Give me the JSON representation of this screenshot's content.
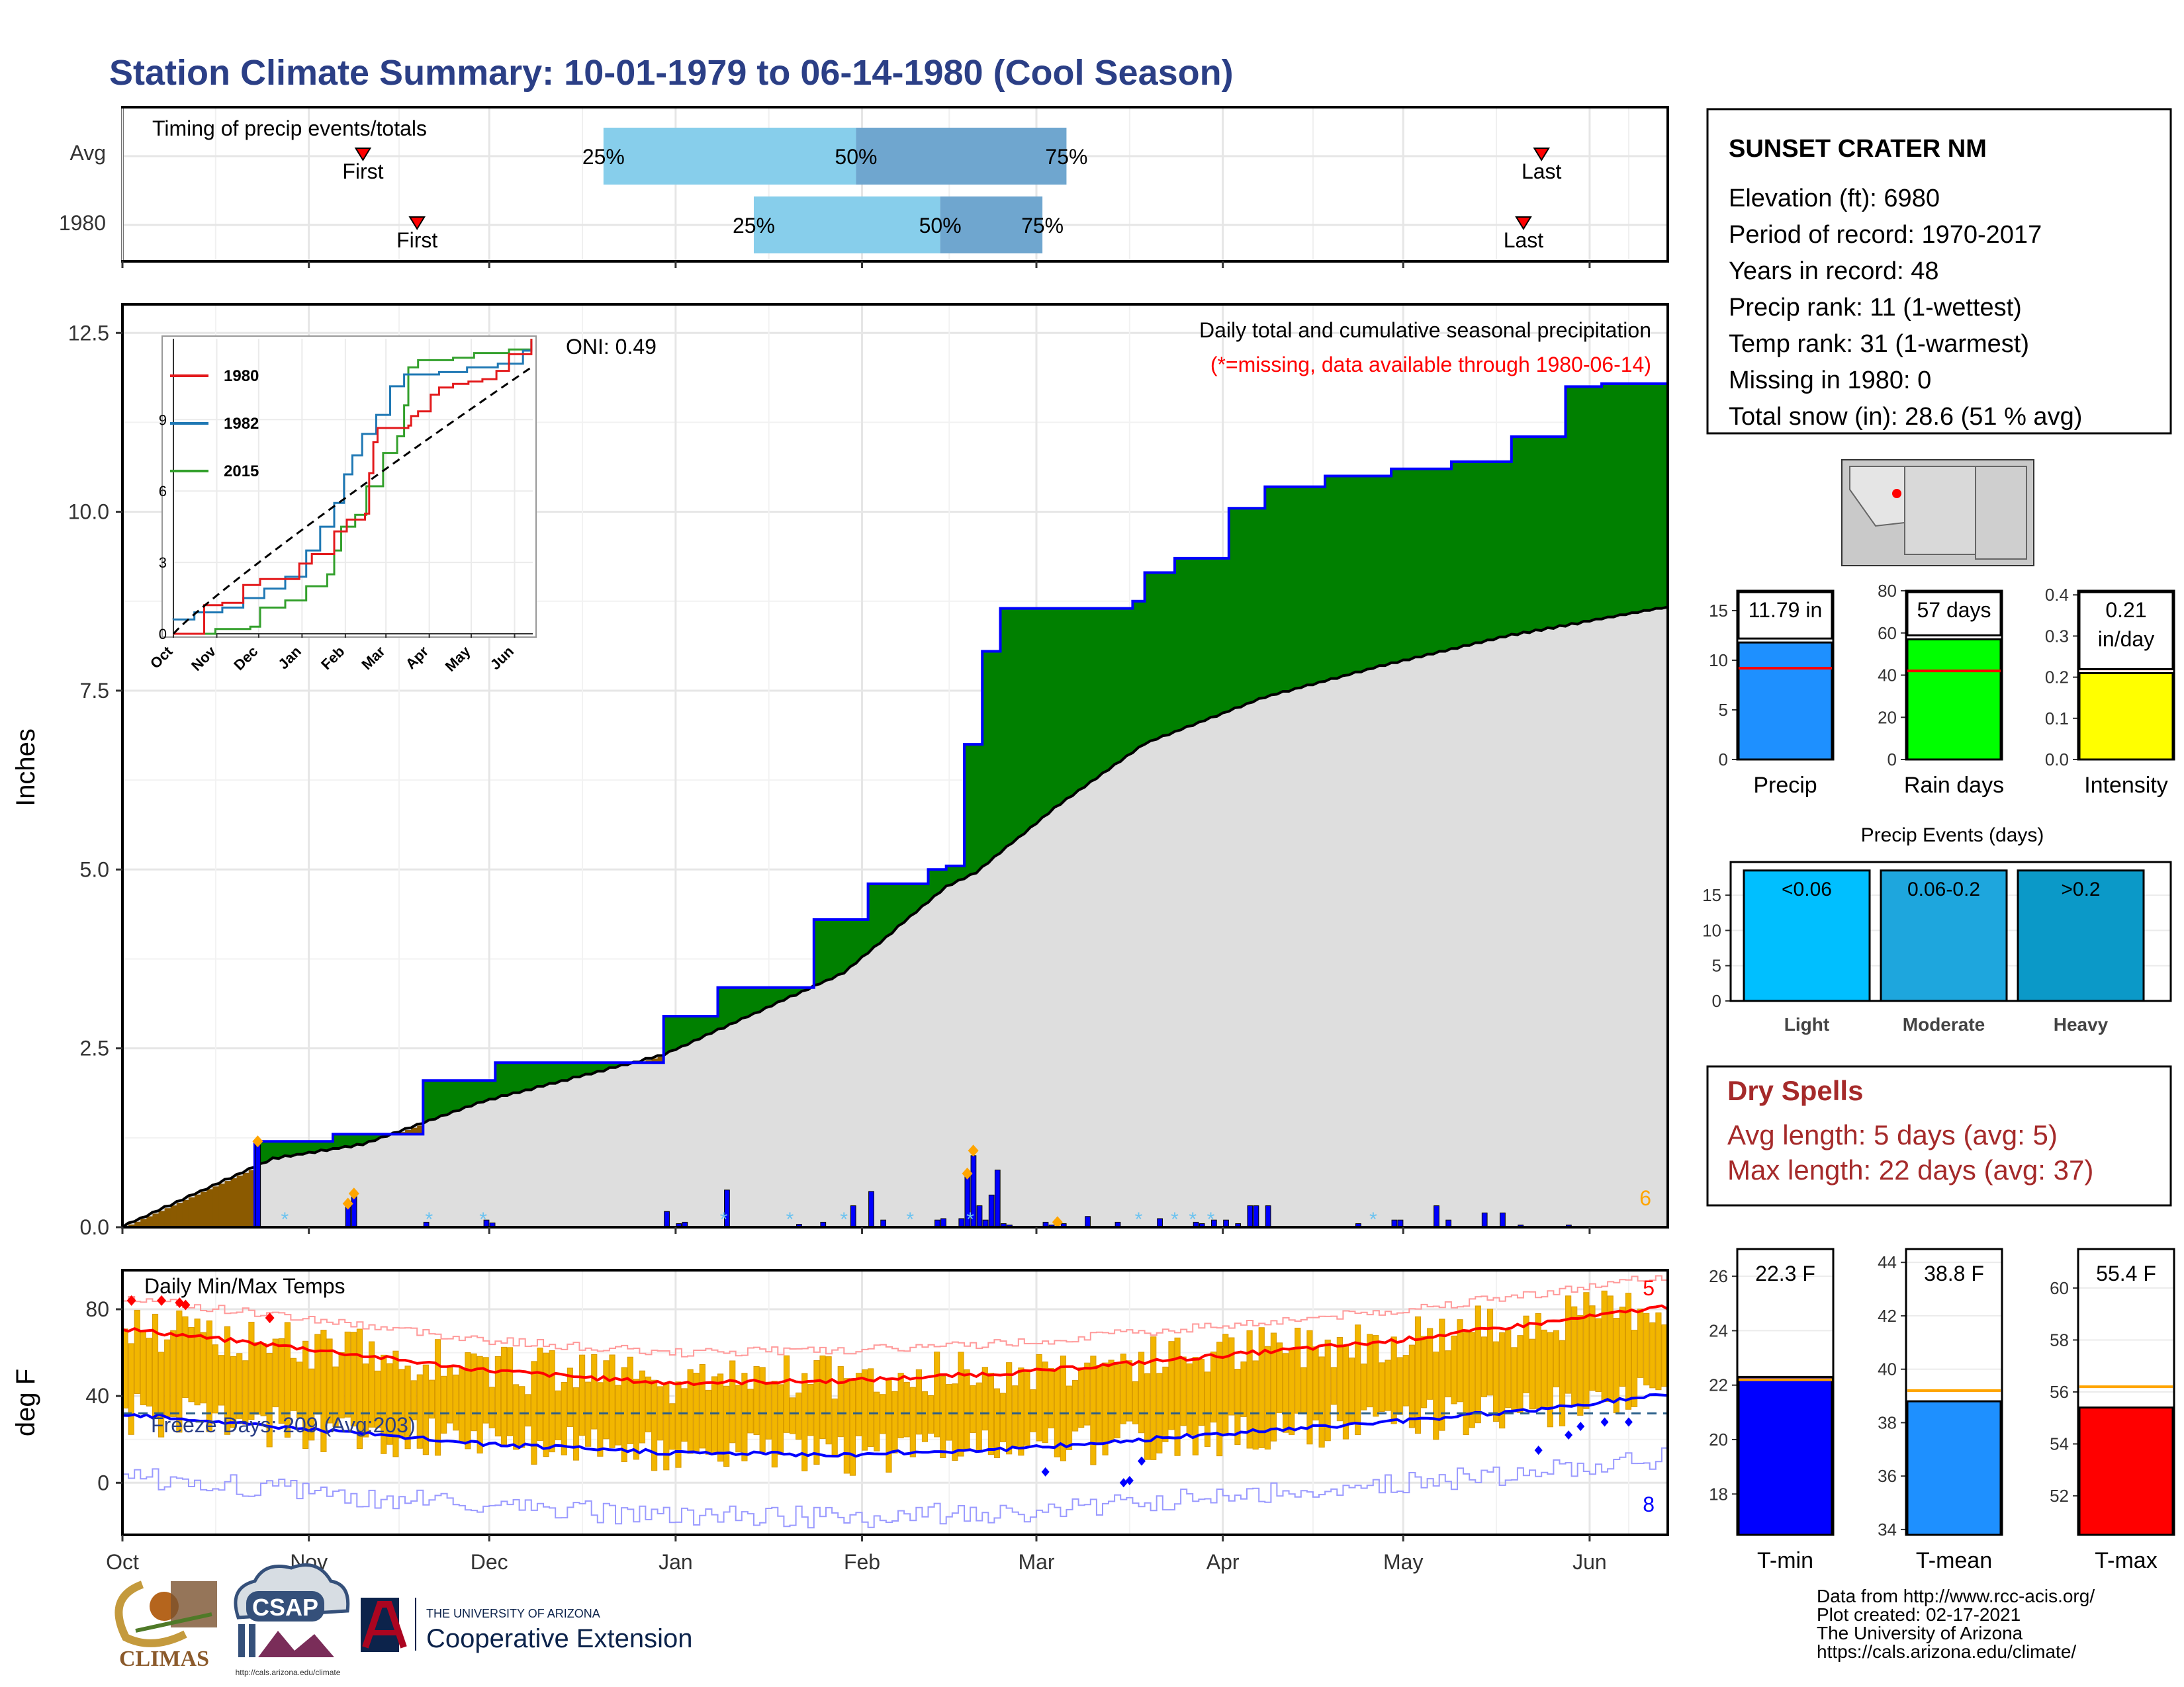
{
  "title": "Station Climate Summary: 10-01-1979 to 06-14-1980 (Cool Season)",
  "timing": {
    "title": "Timing of precip events/totals",
    "rows": [
      {
        "label": "Avg",
        "first": "11-10",
        "p25": "12-20",
        "p50": "01-31",
        "p75": "03-06",
        "last": "05-24"
      },
      {
        "label": "1980",
        "first": "11-19",
        "p25": "01-14",
        "p50": "02-14",
        "p75": "03-02",
        "last": "05-21"
      }
    ],
    "first_label": "First",
    "last_label": "Last",
    "p25_label": "25%",
    "p50_label": "50%",
    "p75_label": "75%"
  },
  "months": [
    "Oct",
    "Nov",
    "Dec",
    "Jan",
    "Feb",
    "Mar",
    "Apr",
    "May",
    "Jun"
  ],
  "month_starts": [
    "1979-10-01",
    "1979-11-01",
    "1979-12-01",
    "1980-01-01",
    "1980-02-01",
    "1980-03-01",
    "1980-04-01",
    "1980-05-01",
    "1980-06-01"
  ],
  "precip_panel": {
    "ylabel": "Inches",
    "ylim": [
      0,
      12.9
    ],
    "yticks": [
      "0.0",
      "2.5",
      "5.0",
      "7.5",
      "10.0",
      "12.5"
    ],
    "oni": "ONI: 0.49",
    "caption": "Daily total and cumulative seasonal precipitation",
    "missing_note": "(*=missing, data available through 1980-06-14)",
    "corner_count": "6"
  },
  "inset": {
    "series": [
      "1980",
      "1982",
      "2015"
    ],
    "yticks": [
      "0",
      "3",
      "6",
      "9"
    ],
    "months": [
      "Oct",
      "Nov",
      "Dec",
      "Jan",
      "Feb",
      "Mar",
      "Apr",
      "May",
      "Jun"
    ]
  },
  "temp_panel": {
    "title": "Daily Min/Max Temps",
    "ylabel": "deg F",
    "yticks": [
      "0",
      "40",
      "80"
    ],
    "freeze_text": "Freeze Days: 209 (Avg:203)",
    "max_count": "5",
    "min_count": "8"
  },
  "station": {
    "name": "SUNSET CRATER NM",
    "lines": [
      "Elevation (ft): 6980",
      "Period of record: 1970-2017",
      "Years in record: 48",
      "Precip rank: 11 (1-wettest)",
      "Temp rank: 31 (1-warmest)",
      "Missing in 1980: 0",
      "Total snow (in): 28.6 (51 % avg)"
    ]
  },
  "stat_bars": [
    {
      "label": "Precip",
      "value_label": "11.79 in",
      "value": 11.79,
      "avg": 9.2,
      "ylim": [
        0,
        17
      ],
      "yticks": [
        "0",
        "5",
        "10",
        "15"
      ],
      "color": "#1e90ff"
    },
    {
      "label": "Rain days",
      "value_label": "57 days",
      "value": 57,
      "avg": 42,
      "ylim": [
        0,
        80
      ],
      "yticks": [
        "0",
        "20",
        "40",
        "60",
        "80"
      ],
      "color": "#00ff00"
    },
    {
      "label": "Intensity",
      "value_label": "0.21 in/day",
      "value": 0.21,
      "avg": 0.22,
      "ylim": [
        0,
        0.41
      ],
      "yticks": [
        "0.0",
        "0.1",
        "0.2",
        "0.3",
        "0.4"
      ],
      "color": "#ffff00"
    }
  ],
  "events": {
    "title": "Precip Events (days)",
    "categories": [
      "Light",
      "Moderate",
      "Heavy"
    ],
    "bin_labels": [
      "<0.06",
      "0.06-0.2",
      ">0.2"
    ],
    "values": [
      18.5,
      18.5,
      18.5
    ],
    "yticks": [
      "0",
      "5",
      "10",
      "15"
    ],
    "colors": [
      "#00bfff",
      "#1ea6dd",
      "#0b99c8"
    ]
  },
  "dry_spells": {
    "title": "Dry Spells",
    "avg_line": "Avg length: 5 days (avg: 5)",
    "max_line": "Max length: 22 days (avg: 37)"
  },
  "temp_bars": [
    {
      "label": "T-min",
      "value_label": "22.3 F",
      "value": 22.3,
      "avg": 22.2,
      "ylim": [
        16.5,
        27
      ],
      "yticks": [
        "18",
        "20",
        "22",
        "24",
        "26"
      ],
      "color": "#0000ff"
    },
    {
      "label": "T-mean",
      "value_label": "38.8 F",
      "value": 38.8,
      "avg": 39.2,
      "ylim": [
        33.8,
        44.5
      ],
      "yticks": [
        "34",
        "36",
        "38",
        "40",
        "42",
        "44"
      ],
      "color": "#1e90ff"
    },
    {
      "label": "T-max",
      "value_label": "55.4 F",
      "value": 55.4,
      "avg": 56.2,
      "ylim": [
        50.5,
        61.5
      ],
      "yticks": [
        "52",
        "54",
        "56",
        "58",
        "60"
      ],
      "color": "#ff0000"
    }
  ],
  "footer": {
    "lines": [
      "Data from http://www.rcc-acis.org/",
      "Plot created: 02-17-2021",
      "The University of Arizona",
      "https://cals.arizona.edu/climate/"
    ],
    "climas": "CLIMAS",
    "csap": "CSAP",
    "csap_url": "http://cals.arizona.edu/climate",
    "ua_small": "THE UNIVERSITY OF ARIZONA",
    "ua_big": "Cooperative Extension"
  },
  "colors": {
    "title": "#2b3f86",
    "deficit": "#8b5a00",
    "surplus": "#008000",
    "normal": "#dedede",
    "bars": "#0000ff",
    "temp": "#f2b600"
  }
}
